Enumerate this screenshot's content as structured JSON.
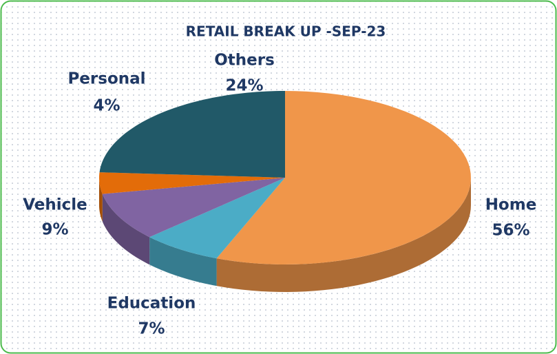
{
  "chart_data": {
    "type": "pie",
    "title": "RETAIL BREAK UP -SEP-23",
    "categories": [
      "Home",
      "Education",
      "Vehicle",
      "Personal",
      "Others"
    ],
    "values": [
      56,
      7,
      9,
      4,
      24
    ],
    "value_labels": [
      "56%",
      "7%",
      "9%",
      "4%",
      "24%"
    ],
    "colors": [
      "#f0964a",
      "#4bacc6",
      "#8064a2",
      "#e36c09",
      "#215968"
    ]
  }
}
